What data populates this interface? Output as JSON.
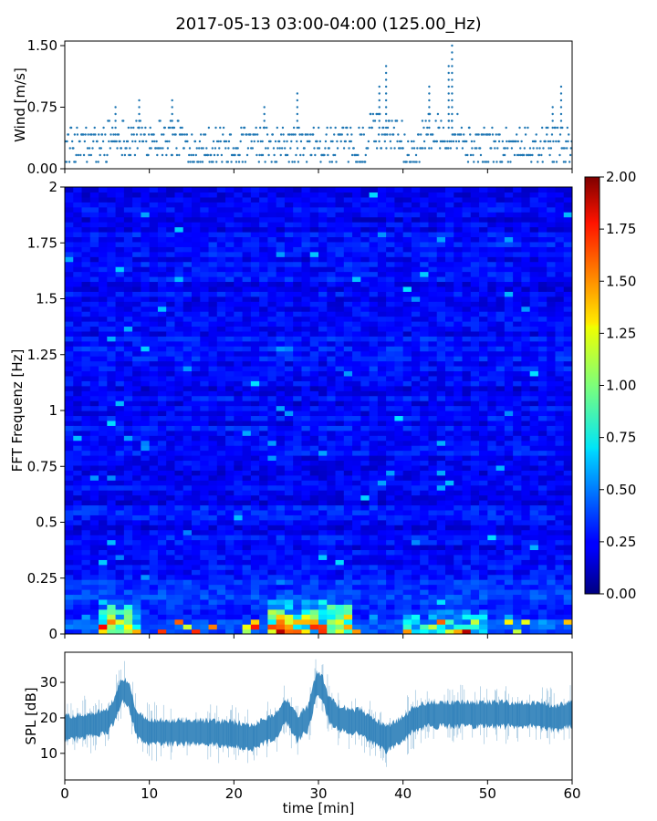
{
  "title": "2017-05-13 03:00-04:00 (125.00_Hz)",
  "chart_data": [
    {
      "type": "scatter",
      "ylabel": "Wind [m/s]",
      "xlim": [
        0,
        60
      ],
      "ylim": [
        0,
        1.5
      ],
      "yticks": [
        "0.00",
        "0.75",
        "1.50"
      ],
      "levels": [
        0.083,
        0.167,
        0.25,
        0.333,
        0.417,
        0.5,
        0.583,
        0.667,
        0.75,
        0.833,
        0.917,
        1.0,
        1.083,
        1.167,
        1.25,
        1.333,
        1.417,
        1.5
      ],
      "gusts": [
        {
          "x": 6.0,
          "y": 0.75
        },
        {
          "x": 8.8,
          "y": 0.88
        },
        {
          "x": 12.7,
          "y": 0.88
        },
        {
          "x": 23.6,
          "y": 0.75
        },
        {
          "x": 27.5,
          "y": 0.92
        },
        {
          "x": 37.2,
          "y": 1.0
        },
        {
          "x": 38.0,
          "y": 1.25
        },
        {
          "x": 43.1,
          "y": 1.08
        },
        {
          "x": 45.4,
          "y": 1.33
        },
        {
          "x": 45.8,
          "y": 1.5
        },
        {
          "x": 57.7,
          "y": 0.75
        },
        {
          "x": 58.7,
          "y": 1.0
        }
      ],
      "color": "#1f77b4"
    },
    {
      "type": "heatmap",
      "ylabel": "FFT Frequenz [Hz]",
      "xlim": [
        0,
        60
      ],
      "ylim": [
        0,
        2
      ],
      "yticks": [
        "0",
        "0.25",
        "0.5",
        "0.75",
        "1",
        "1.25",
        "1.5",
        "1.75",
        "2"
      ],
      "colorbar": {
        "range": [
          0,
          2
        ],
        "ticks": [
          "0.00",
          "0.25",
          "0.50",
          "0.75",
          "1.00",
          "1.25",
          "1.50",
          "1.75",
          "2.00"
        ],
        "colormap": "jet"
      },
      "typical_value": 0.25,
      "hotspots": [
        {
          "t_min": 4,
          "t_max": 9,
          "f_max": 0.15,
          "peak": 1.9
        },
        {
          "t_min": 24,
          "t_max": 34,
          "f_max": 0.15,
          "peak": 2.0
        },
        {
          "t_min": 40,
          "t_max": 50,
          "f_max": 0.1,
          "peak": 1.6
        }
      ]
    },
    {
      "type": "area",
      "ylabel": "SPL [dB]",
      "xlabel": "time [min]",
      "xlim": [
        0,
        60
      ],
      "ylim": [
        2.5,
        38.5
      ],
      "yticks": [
        "10",
        "20",
        "30"
      ],
      "xticks": [
        "0",
        "10",
        "20",
        "30",
        "40",
        "50",
        "60"
      ],
      "trend": {
        "x": [
          0,
          3,
          5,
          6,
          6.7,
          7.5,
          8.5,
          10,
          15,
          20,
          22,
          23.5,
          25,
          26.2,
          27.5,
          28.8,
          29.7,
          30.4,
          31.3,
          32.5,
          34,
          35,
          36,
          38,
          40,
          41.5,
          43,
          45,
          50,
          55,
          58,
          60
        ],
        "y": [
          17,
          18,
          19,
          23,
          28,
          27,
          18,
          16,
          16,
          15.5,
          14.5,
          16,
          18,
          22,
          17,
          20,
          29,
          29,
          22,
          20,
          19,
          19,
          17,
          14,
          17,
          20,
          21,
          21,
          21,
          21,
          20,
          21
        ]
      },
      "band_halfwidth": 2.5,
      "color": "#1f77b4"
    }
  ]
}
